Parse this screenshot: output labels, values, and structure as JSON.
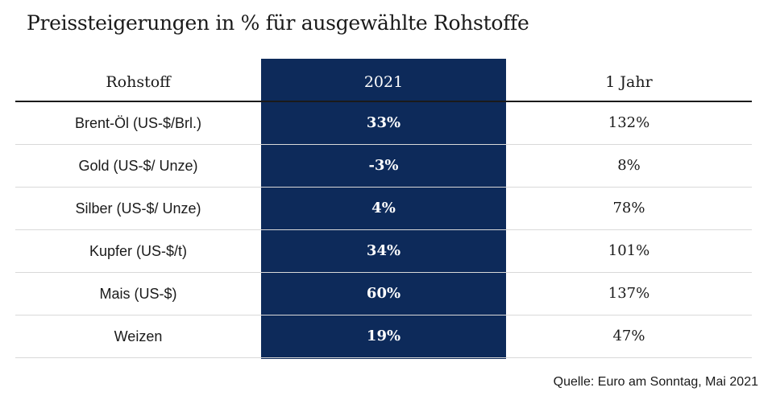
{
  "chart_data": {
    "type": "table",
    "title": "Preissteigerungen in % für ausgewählte Rohstoffe",
    "columns": [
      "Rohstoff",
      "2021",
      "1 Jahr"
    ],
    "rows": [
      {
        "rohstoff": "Brent-Öl (US-$/Brl.)",
        "v2021": "33%",
        "v1y": "132%"
      },
      {
        "rohstoff": "Gold (US-$/ Unze)",
        "v2021": "-3%",
        "v1y": "8%"
      },
      {
        "rohstoff": "Silber (US-$/ Unze)",
        "v2021": "4%",
        "v1y": "78%"
      },
      {
        "rohstoff": "Kupfer (US-$/t)",
        "v2021": "34%",
        "v1y": "101%"
      },
      {
        "rohstoff": "Mais (US-$)",
        "v2021": "60%",
        "v1y": "137%"
      },
      {
        "rohstoff": "Weizen",
        "v2021": "19%",
        "v1y": "47%"
      }
    ],
    "highlight_column": "2021",
    "source": "Quelle: Euro am Sonntag, Mai 2021"
  },
  "colors": {
    "highlight": "#0d2a5a",
    "text": "#1a1a1a",
    "divider": "#d9d9d9"
  }
}
